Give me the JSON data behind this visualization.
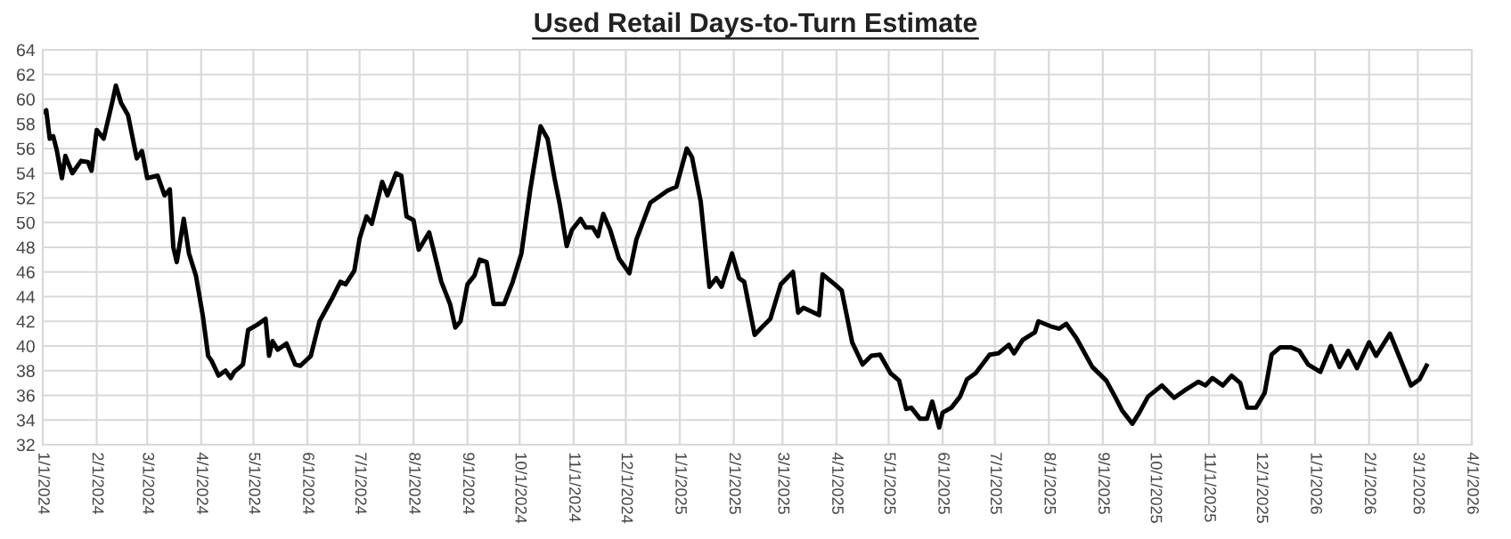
{
  "chart_data": {
    "type": "line",
    "title": "Used Retail Days-to-Turn Estimate",
    "x": [
      "2024-01-01",
      "2024-01-03",
      "2024-01-05",
      "2024-01-07",
      "2024-01-09",
      "2024-01-12",
      "2024-01-14",
      "2024-01-18",
      "2024-01-23",
      "2024-01-27",
      "2024-01-29",
      "2024-02-01",
      "2024-02-05",
      "2024-02-10",
      "2024-02-12",
      "2024-02-15",
      "2024-02-19",
      "2024-02-24",
      "2024-02-27",
      "2024-03-01",
      "2024-03-07",
      "2024-03-11",
      "2024-03-14",
      "2024-03-16",
      "2024-03-18",
      "2024-03-22",
      "2024-03-25",
      "2024-03-29",
      "2024-04-02",
      "2024-04-05",
      "2024-04-07",
      "2024-04-11",
      "2024-04-15",
      "2024-04-18",
      "2024-04-20",
      "2024-04-25",
      "2024-04-28",
      "2024-05-03",
      "2024-05-08",
      "2024-05-10",
      "2024-05-12",
      "2024-05-15",
      "2024-05-20",
      "2024-05-25",
      "2024-05-28",
      "2024-06-03",
      "2024-06-08",
      "2024-06-15",
      "2024-06-20",
      "2024-06-23",
      "2024-06-28",
      "2024-07-01",
      "2024-07-05",
      "2024-07-08",
      "2024-07-14",
      "2024-07-17",
      "2024-07-22",
      "2024-07-25",
      "2024-07-28",
      "2024-08-01",
      "2024-08-04",
      "2024-08-10",
      "2024-08-13",
      "2024-08-17",
      "2024-08-22",
      "2024-08-25",
      "2024-08-28",
      "2024-09-01",
      "2024-09-05",
      "2024-09-08",
      "2024-09-12",
      "2024-09-16",
      "2024-09-22",
      "2024-09-27",
      "2024-10-02",
      "2024-10-07",
      "2024-10-13",
      "2024-10-17",
      "2024-10-21",
      "2024-10-24",
      "2024-10-28",
      "2024-10-31",
      "2024-11-05",
      "2024-11-08",
      "2024-11-12",
      "2024-11-15",
      "2024-11-18",
      "2024-11-22",
      "2024-11-27",
      "2024-12-03",
      "2024-12-07",
      "2024-12-15",
      "2024-12-25",
      "2024-12-30",
      "2025-01-05",
      "2025-01-08",
      "2025-01-13",
      "2025-01-18",
      "2025-01-22",
      "2025-01-25",
      "2025-01-31",
      "2025-02-04",
      "2025-02-07",
      "2025-02-13",
      "2025-02-17",
      "2025-02-22",
      "2025-02-28",
      "2025-03-07",
      "2025-03-10",
      "2025-03-13",
      "2025-03-22",
      "2025-03-24",
      "2025-03-31",
      "2025-04-04",
      "2025-04-10",
      "2025-04-16",
      "2025-04-21",
      "2025-04-26",
      "2025-05-02",
      "2025-05-07",
      "2025-05-11",
      "2025-05-14",
      "2025-05-19",
      "2025-05-23",
      "2025-05-26",
      "2025-05-30",
      "2025-06-01",
      "2025-06-06",
      "2025-06-11",
      "2025-06-15",
      "2025-06-20",
      "2025-06-28",
      "2025-07-03",
      "2025-07-09",
      "2025-07-12",
      "2025-07-17",
      "2025-07-24",
      "2025-07-26",
      "2025-08-02",
      "2025-08-07",
      "2025-08-11",
      "2025-08-17",
      "2025-08-26",
      "2025-09-03",
      "2025-09-08",
      "2025-09-12",
      "2025-09-18",
      "2025-09-22",
      "2025-09-27",
      "2025-10-05",
      "2025-10-12",
      "2025-10-18",
      "2025-10-26",
      "2025-10-30",
      "2025-11-03",
      "2025-11-09",
      "2025-11-14",
      "2025-11-19",
      "2025-11-23",
      "2025-11-28",
      "2025-12-03",
      "2025-12-07",
      "2025-12-12",
      "2025-12-18",
      "2025-12-23",
      "2025-12-28",
      "2026-01-04",
      "2026-01-10",
      "2026-01-15",
      "2026-01-20",
      "2026-01-25",
      "2026-02-01",
      "2026-02-05",
      "2026-02-13",
      "2026-02-19",
      "2026-02-25",
      "2026-03-02",
      "2026-03-06"
    ],
    "series": [
      {
        "color": "#000000",
        "values": [
          58.9,
          59.1,
          56.8,
          57.0,
          55.9,
          53.6,
          55.4,
          54.0,
          55.0,
          54.9,
          54.2,
          57.5,
          56.8,
          59.8,
          61.1,
          59.7,
          58.7,
          55.2,
          55.8,
          53.6,
          53.8,
          52.2,
          52.7,
          48.0,
          46.8,
          50.3,
          47.5,
          45.7,
          42.4,
          39.2,
          38.8,
          37.6,
          38.0,
          37.4,
          37.9,
          38.5,
          41.3,
          41.7,
          42.2,
          39.2,
          40.4,
          39.7,
          40.2,
          38.5,
          38.4,
          39.2,
          42.0,
          43.8,
          45.2,
          45.0,
          46.1,
          48.7,
          50.5,
          49.9,
          53.3,
          52.2,
          54.0,
          53.8,
          50.5,
          50.2,
          47.8,
          49.2,
          47.5,
          45.2,
          43.4,
          41.5,
          42.0,
          45.0,
          45.7,
          47.0,
          46.8,
          43.4,
          43.4,
          45.2,
          47.5,
          52.6,
          57.8,
          56.8,
          53.6,
          51.5,
          48.1,
          49.4,
          50.3,
          49.6,
          49.6,
          48.9,
          50.7,
          49.4,
          47.1,
          45.9,
          48.6,
          51.6,
          52.6,
          52.9,
          56.0,
          55.3,
          51.7,
          44.8,
          45.5,
          44.8,
          47.5,
          45.5,
          45.2,
          40.9,
          41.5,
          42.2,
          45.0,
          46.0,
          42.7,
          43.1,
          42.5,
          45.8,
          45.0,
          44.5,
          40.3,
          38.5,
          39.2,
          39.3,
          37.8,
          37.2,
          34.9,
          35.0,
          34.1,
          34.1,
          35.5,
          33.4,
          34.6,
          35.0,
          35.9,
          37.3,
          37.8,
          39.3,
          39.4,
          40.1,
          39.4,
          40.5,
          41.1,
          42.0,
          41.6,
          41.4,
          41.8,
          40.6,
          38.3,
          37.2,
          35.9,
          34.8,
          33.7,
          34.6,
          35.9,
          36.8,
          35.8,
          36.4,
          37.1,
          36.8,
          37.4,
          36.8,
          37.6,
          37.0,
          35.0,
          35.0,
          36.2,
          39.3,
          39.9,
          39.9,
          39.6,
          38.5,
          37.9,
          40.0,
          38.3,
          39.6,
          38.2,
          40.3,
          39.2,
          41.0,
          38.9,
          36.8,
          37.3,
          38.4
        ]
      }
    ],
    "xlim": [
      "2024-01-01",
      "2026-04-01"
    ],
    "xticks": [
      {
        "value": "2024-01-01",
        "label": "1/1/2024"
      },
      {
        "value": "2024-02-01",
        "label": "2/1/2024"
      },
      {
        "value": "2024-03-01",
        "label": "3/1/2024"
      },
      {
        "value": "2024-04-01",
        "label": "4/1/2024"
      },
      {
        "value": "2024-05-01",
        "label": "5/1/2024"
      },
      {
        "value": "2024-06-01",
        "label": "6/1/2024"
      },
      {
        "value": "2024-07-01",
        "label": "7/1/2024"
      },
      {
        "value": "2024-08-01",
        "label": "8/1/2024"
      },
      {
        "value": "2024-09-01",
        "label": "9/1/2024"
      },
      {
        "value": "2024-10-01",
        "label": "10/1/2024"
      },
      {
        "value": "2024-11-01",
        "label": "11/1/2024"
      },
      {
        "value": "2024-12-01",
        "label": "12/1/2024"
      },
      {
        "value": "2025-01-01",
        "label": "1/1/2025"
      },
      {
        "value": "2025-02-01",
        "label": "2/1/2025"
      },
      {
        "value": "2025-03-01",
        "label": "3/1/2025"
      },
      {
        "value": "2025-04-01",
        "label": "4/1/2025"
      },
      {
        "value": "2025-05-01",
        "label": "5/1/2025"
      },
      {
        "value": "2025-06-01",
        "label": "6/1/2025"
      },
      {
        "value": "2025-07-01",
        "label": "7/1/2025"
      },
      {
        "value": "2025-08-01",
        "label": "8/1/2025"
      },
      {
        "value": "2025-09-01",
        "label": "9/1/2025"
      },
      {
        "value": "2025-10-01",
        "label": "10/1/2025"
      },
      {
        "value": "2025-11-01",
        "label": "11/1/2025"
      },
      {
        "value": "2025-12-01",
        "label": "12/1/2025"
      },
      {
        "value": "2026-01-01",
        "label": "1/1/2026"
      },
      {
        "value": "2026-02-01",
        "label": "2/1/2026"
      },
      {
        "value": "2026-03-01",
        "label": "3/1/2026"
      },
      {
        "value": "2026-04-01",
        "label": "4/1/2026"
      }
    ],
    "ylim": [
      32,
      64
    ],
    "yticks": [
      32,
      34,
      36,
      38,
      40,
      42,
      44,
      46,
      48,
      50,
      52,
      54,
      56,
      58,
      60,
      62,
      64
    ],
    "grid": true
  }
}
